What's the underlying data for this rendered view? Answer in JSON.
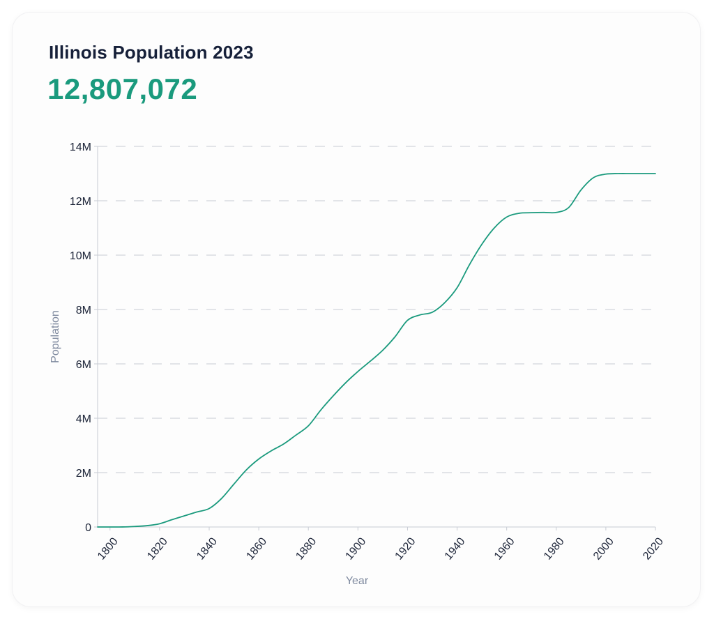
{
  "header": {
    "title": "Illinois Population 2023",
    "value": "12,807,072"
  },
  "colors": {
    "line": "#1a9a7d",
    "grid": "#c8ccd4",
    "text": "#1c2438",
    "muted": "#7f8a9f"
  },
  "chart_data": {
    "type": "line",
    "title": "Illinois Population 2023",
    "xlabel": "Year",
    "ylabel": "Population",
    "xlim": [
      1795,
      2020
    ],
    "ylim": [
      0,
      14000000
    ],
    "x_ticks": [
      1800,
      1820,
      1840,
      1860,
      1880,
      1900,
      1920,
      1940,
      1960,
      1980,
      2000,
      2020
    ],
    "x_tick_labels": [
      "1800",
      "1820",
      "1840",
      "1860",
      "1880",
      "1900",
      "1920",
      "1940",
      "1960",
      "1980",
      "2000",
      "2020"
    ],
    "y_ticks": [
      0,
      2000000,
      4000000,
      6000000,
      8000000,
      10000000,
      12000000,
      14000000
    ],
    "y_tick_labels": [
      "0",
      "2M",
      "4M",
      "6M",
      "8M",
      "10M",
      "12M",
      "14M"
    ],
    "grid": "horizontal-dashed",
    "series": [
      {
        "x": [
          1795,
          1800,
          1805,
          1810,
          1815,
          1820,
          1825,
          1830,
          1835,
          1840,
          1845,
          1850,
          1855,
          1860,
          1865,
          1870,
          1875,
          1880,
          1885,
          1890,
          1895,
          1900,
          1905,
          1910,
          1915,
          1920,
          1925,
          1930,
          1935,
          1940,
          1945,
          1950,
          1955,
          1960,
          1965,
          1970,
          1975,
          1980,
          1985,
          1990,
          1995,
          2000,
          2005,
          2010,
          2015,
          2020
        ],
        "y": [
          0,
          0,
          2000,
          20000,
          50000,
          120000,
          270000,
          410000,
          550000,
          680000,
          1050000,
          1580000,
          2100000,
          2500000,
          2800000,
          3050000,
          3380000,
          3720000,
          4300000,
          4820000,
          5300000,
          5720000,
          6100000,
          6500000,
          7000000,
          7600000,
          7800000,
          7900000,
          8250000,
          8800000,
          9650000,
          10400000,
          11000000,
          11400000,
          11540000,
          11560000,
          11570000,
          11570000,
          11750000,
          12400000,
          12850000,
          12980000,
          13000000,
          13000000,
          13000000,
          13000000
        ]
      }
    ]
  }
}
